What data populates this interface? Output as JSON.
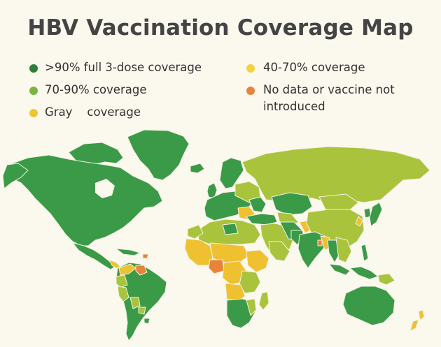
{
  "title": "HBV Vaccination Coverage Map",
  "legend": [
    {
      "label": ">90% full 3-dose coverage",
      "color": "#2f7d3a",
      "icon": "dark-green-dot"
    },
    {
      "label": "70-90% coverage",
      "color": "#7cb342",
      "icon": "light-green-dot"
    },
    {
      "label": "Gray    coverage",
      "color": "#f2c530",
      "icon": "yellow-dot"
    },
    {
      "label": "40-70% coverage",
      "color": "#f3d33a",
      "icon": "yellow-dot"
    },
    {
      "label_lines": [
        "No data or vaccine not",
        "introduced"
      ],
      "color": "#e8833a",
      "icon": "orange-dot"
    }
  ],
  "map_colors": {
    "high": "#3b9a47",
    "mid": "#a9c43c",
    "low": "#efc02f",
    "none": "#e8833a",
    "ocean": "#fbf8ee",
    "border": "#f4f1e2"
  }
}
